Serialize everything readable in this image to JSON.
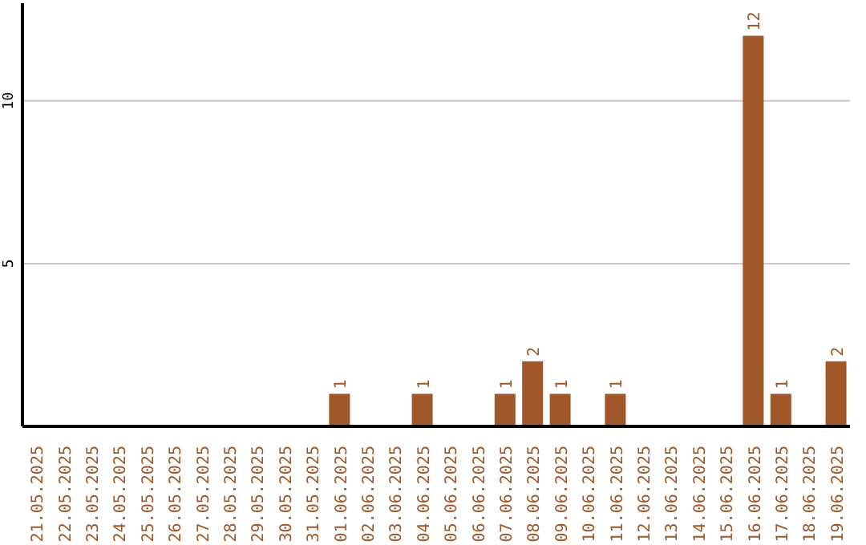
{
  "chart_data": {
    "type": "bar",
    "categories": [
      "21.05.2025",
      "22.05.2025",
      "23.05.2025",
      "24.05.2025",
      "25.05.2025",
      "26.05.2025",
      "27.05.2025",
      "28.05.2025",
      "29.05.2025",
      "30.05.2025",
      "31.05.2025",
      "01.06.2025",
      "02.06.2025",
      "03.06.2025",
      "04.06.2025",
      "05.06.2025",
      "06.06.2025",
      "07.06.2025",
      "08.06.2025",
      "09.06.2025",
      "10.06.2025",
      "11.06.2025",
      "12.06.2025",
      "13.06.2025",
      "14.06.2025",
      "15.06.2025",
      "16.06.2025",
      "17.06.2025",
      "18.06.2025",
      "19.06.2025"
    ],
    "values": [
      0,
      0,
      0,
      0,
      0,
      0,
      0,
      0,
      0,
      0,
      0,
      1,
      0,
      0,
      1,
      0,
      0,
      1,
      2,
      1,
      0,
      1,
      0,
      0,
      0,
      0,
      12,
      1,
      0,
      2
    ],
    "value_labels": [
      null,
      null,
      null,
      null,
      null,
      null,
      null,
      null,
      null,
      null,
      null,
      "1",
      null,
      null,
      "1",
      null,
      null,
      "1",
      "2",
      "1",
      null,
      "1",
      null,
      null,
      null,
      null,
      "12",
      "1",
      null,
      "2"
    ],
    "color": "#a0572a",
    "ylim": [
      0,
      13
    ],
    "yticks": [
      5,
      10
    ],
    "grid": "y"
  }
}
